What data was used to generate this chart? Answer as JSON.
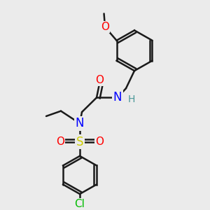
{
  "bg_color": "#ebebeb",
  "bond_color": "#1a1a1a",
  "bond_width": 1.8,
  "atom_colors": {
    "O": "#ff0000",
    "N": "#0000ff",
    "S": "#cccc00",
    "Cl": "#00bb00",
    "H": "#4a9898",
    "C": "#1a1a1a"
  },
  "font_size": 10,
  "fig_size": [
    3.0,
    3.0
  ],
  "dpi": 100
}
